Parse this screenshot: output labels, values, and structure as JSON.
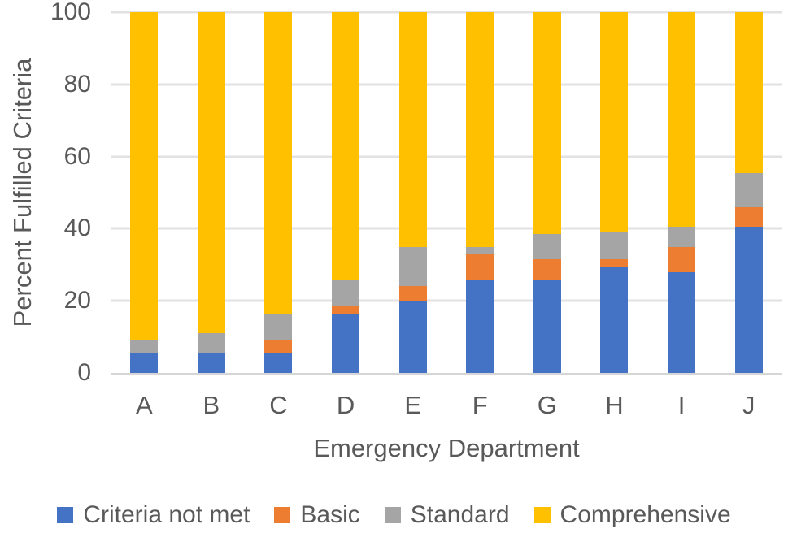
{
  "colors": {
    "criteria_not_met": "#4472C4",
    "basic": "#ED7D31",
    "standard": "#A5A5A5",
    "comprehensive": "#FFC000",
    "axis_text": "#595959",
    "gridline": "#E2E2E2",
    "axis_line": "#D6D6D6"
  },
  "chart_data": {
    "type": "bar",
    "stacked": true,
    "title": "",
    "xlabel": "Emergency Department",
    "ylabel": "Percent Fulfilled Criteria",
    "ylim": [
      0,
      100
    ],
    "yticks": [
      0,
      20,
      40,
      60,
      80,
      100
    ],
    "grid": true,
    "legend_position": "bottom",
    "categories": [
      "A",
      "B",
      "C",
      "D",
      "E",
      "F",
      "G",
      "H",
      "I",
      "J"
    ],
    "series": [
      {
        "name": "Criteria not met",
        "color": "#4472C4",
        "values": [
          5.5,
          5.5,
          5.5,
          16.5,
          20,
          26,
          26,
          29.5,
          28,
          40.5
        ]
      },
      {
        "name": "Basic",
        "color": "#ED7D31",
        "values": [
          0,
          0,
          3.5,
          2,
          4,
          7,
          5.5,
          2,
          7,
          5.5
        ]
      },
      {
        "name": "Standard",
        "color": "#A5A5A5",
        "values": [
          3.5,
          5.5,
          7.5,
          7.5,
          11,
          2,
          7,
          7.5,
          5.5,
          9.5
        ]
      },
      {
        "name": "Comprehensive",
        "color": "#FFC000",
        "values": [
          91,
          89,
          83.5,
          74,
          65,
          65,
          61.5,
          61,
          59.5,
          44.5
        ]
      }
    ]
  }
}
